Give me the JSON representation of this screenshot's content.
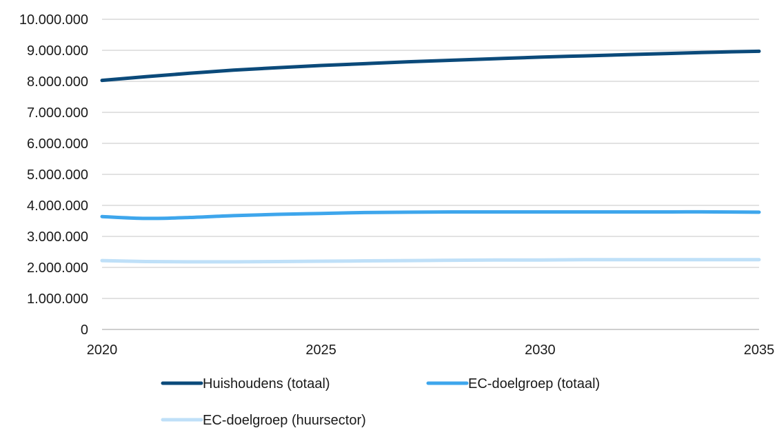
{
  "chart_data": {
    "type": "line",
    "title": "",
    "xlabel": "",
    "ylabel": "",
    "x": [
      2020,
      2021,
      2022,
      2023,
      2024,
      2025,
      2026,
      2027,
      2028,
      2029,
      2030,
      2031,
      2032,
      2033,
      2034,
      2035
    ],
    "x_ticks": [
      "2020",
      "2025",
      "2030",
      "2035"
    ],
    "ylim": [
      0,
      10000000
    ],
    "y_ticks": [
      "0",
      "1.000.000",
      "2.000.000",
      "3.000.000",
      "4.000.000",
      "5.000.000",
      "6.000.000",
      "7.000.000",
      "8.000.000",
      "9.000.000",
      "10.000.000"
    ],
    "grid": true,
    "legend_position": "bottom",
    "series": [
      {
        "name": "Huishoudens (totaal)",
        "color": "#0b4a7a",
        "values": [
          8030000,
          8150000,
          8260000,
          8360000,
          8440000,
          8510000,
          8570000,
          8630000,
          8680000,
          8730000,
          8780000,
          8820000,
          8860000,
          8900000,
          8940000,
          8970000
        ]
      },
      {
        "name": "EC-doelgroep (totaal)",
        "color": "#3ea6ec",
        "values": [
          3640000,
          3580000,
          3610000,
          3670000,
          3710000,
          3740000,
          3770000,
          3780000,
          3790000,
          3790000,
          3790000,
          3790000,
          3790000,
          3790000,
          3790000,
          3780000
        ]
      },
      {
        "name": "EC-doelgroep (huursector)",
        "color": "#bfe0f8",
        "values": [
          2220000,
          2190000,
          2180000,
          2180000,
          2190000,
          2200000,
          2210000,
          2220000,
          2230000,
          2240000,
          2240000,
          2250000,
          2250000,
          2250000,
          2250000,
          2250000
        ]
      }
    ]
  }
}
